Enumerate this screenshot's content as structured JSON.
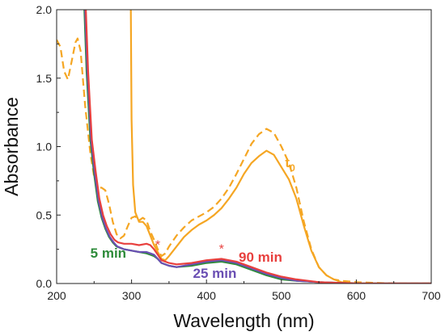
{
  "chart_data": {
    "type": "line",
    "xlabel": "Wavelength (nm)",
    "ylabel": "Absorbance",
    "xlim": [
      200,
      700
    ],
    "ylim": [
      0,
      2.0
    ],
    "xticks": [
      200,
      300,
      400,
      500,
      600,
      700
    ],
    "yticks": [
      0.0,
      0.5,
      1.0,
      1.5,
      2.0
    ],
    "ytick_labels": [
      "0.0",
      "0.5",
      "1.0",
      "1.5",
      "2.0"
    ],
    "grid": false,
    "series": [
      {
        "name": "t",
        "name_subscript": "0",
        "color": "#f5a623",
        "style": "dashed",
        "points": [
          [
            200,
            1.78
          ],
          [
            205,
            1.73
          ],
          [
            210,
            1.55
          ],
          [
            215,
            1.49
          ],
          [
            220,
            1.62
          ],
          [
            225,
            1.76
          ],
          [
            228,
            1.79
          ],
          [
            232,
            1.7
          ],
          [
            238,
            1.3
          ],
          [
            245,
            0.95
          ],
          [
            250,
            0.78
          ],
          [
            255,
            0.7
          ],
          [
            260,
            0.7
          ],
          [
            265,
            0.68
          ],
          [
            270,
            0.58
          ],
          [
            275,
            0.45
          ],
          [
            280,
            0.36
          ],
          [
            285,
            0.33
          ],
          [
            290,
            0.35
          ],
          [
            295,
            0.42
          ],
          [
            300,
            0.48
          ],
          [
            305,
            0.49
          ],
          [
            310,
            0.46
          ],
          [
            315,
            0.48
          ],
          [
            320,
            0.46
          ],
          [
            325,
            0.38
          ],
          [
            330,
            0.32
          ],
          [
            335,
            0.25
          ],
          [
            340,
            0.2
          ],
          [
            345,
            0.22
          ],
          [
            350,
            0.27
          ],
          [
            360,
            0.35
          ],
          [
            370,
            0.41
          ],
          [
            380,
            0.46
          ],
          [
            390,
            0.49
          ],
          [
            400,
            0.52
          ],
          [
            410,
            0.56
          ],
          [
            420,
            0.62
          ],
          [
            430,
            0.7
          ],
          [
            440,
            0.8
          ],
          [
            450,
            0.91
          ],
          [
            460,
            1.02
          ],
          [
            470,
            1.09
          ],
          [
            480,
            1.13
          ],
          [
            490,
            1.1
          ],
          [
            500,
            1.0
          ],
          [
            510,
            0.88
          ],
          [
            520,
            0.7
          ],
          [
            530,
            0.45
          ],
          [
            540,
            0.25
          ],
          [
            550,
            0.12
          ],
          [
            560,
            0.06
          ],
          [
            570,
            0.03
          ],
          [
            580,
            0.02
          ],
          [
            600,
            0.01
          ],
          [
            650,
            0.0
          ],
          [
            700,
            0.0
          ]
        ]
      },
      {
        "name": "t0 solid",
        "color": "#f5a623",
        "style": "solid",
        "points": [
          [
            299,
            2.0
          ],
          [
            300,
            1.2
          ],
          [
            302,
            0.72
          ],
          [
            305,
            0.52
          ],
          [
            310,
            0.45
          ],
          [
            315,
            0.45
          ],
          [
            320,
            0.42
          ],
          [
            325,
            0.35
          ],
          [
            330,
            0.28
          ],
          [
            340,
            0.18
          ],
          [
            345,
            0.17
          ],
          [
            350,
            0.2
          ],
          [
            360,
            0.27
          ],
          [
            370,
            0.34
          ],
          [
            380,
            0.39
          ],
          [
            390,
            0.43
          ],
          [
            400,
            0.46
          ],
          [
            410,
            0.5
          ],
          [
            420,
            0.55
          ],
          [
            430,
            0.62
          ],
          [
            440,
            0.7
          ],
          [
            450,
            0.8
          ],
          [
            460,
            0.88
          ],
          [
            470,
            0.93
          ],
          [
            480,
            0.97
          ],
          [
            490,
            0.94
          ],
          [
            500,
            0.85
          ],
          [
            510,
            0.76
          ],
          [
            520,
            0.62
          ],
          [
            530,
            0.42
          ],
          [
            540,
            0.24
          ],
          [
            550,
            0.12
          ],
          [
            560,
            0.06
          ],
          [
            570,
            0.03
          ],
          [
            580,
            0.01
          ],
          [
            600,
            0.0
          ],
          [
            650,
            0.0
          ],
          [
            700,
            0.0
          ]
        ]
      },
      {
        "name": "5 min",
        "color": "#2e8b3a",
        "style": "solid",
        "points": [
          [
            237,
            2.0
          ],
          [
            240,
            1.55
          ],
          [
            245,
            1.05
          ],
          [
            250,
            0.8
          ],
          [
            255,
            0.6
          ],
          [
            260,
            0.48
          ],
          [
            265,
            0.4
          ],
          [
            270,
            0.34
          ],
          [
            275,
            0.3
          ],
          [
            280,
            0.27
          ],
          [
            290,
            0.25
          ],
          [
            300,
            0.24
          ],
          [
            310,
            0.23
          ],
          [
            320,
            0.22
          ],
          [
            325,
            0.21
          ],
          [
            330,
            0.2
          ],
          [
            335,
            0.18
          ],
          [
            340,
            0.15
          ],
          [
            350,
            0.13
          ],
          [
            360,
            0.12
          ],
          [
            380,
            0.13
          ],
          [
            400,
            0.15
          ],
          [
            420,
            0.16
          ],
          [
            440,
            0.14
          ],
          [
            460,
            0.1
          ],
          [
            480,
            0.06
          ],
          [
            500,
            0.03
          ],
          [
            520,
            0.02
          ],
          [
            550,
            0.01
          ],
          [
            600,
            0.0
          ],
          [
            700,
            0.0
          ]
        ]
      },
      {
        "name": "25 min",
        "color": "#6a4fb3",
        "style": "solid",
        "points": [
          [
            238,
            2.0
          ],
          [
            241,
            1.55
          ],
          [
            246,
            1.05
          ],
          [
            251,
            0.8
          ],
          [
            256,
            0.6
          ],
          [
            261,
            0.48
          ],
          [
            266,
            0.4
          ],
          [
            271,
            0.34
          ],
          [
            276,
            0.3
          ],
          [
            281,
            0.27
          ],
          [
            290,
            0.25
          ],
          [
            300,
            0.24
          ],
          [
            310,
            0.23
          ],
          [
            320,
            0.23
          ],
          [
            325,
            0.22
          ],
          [
            330,
            0.21
          ],
          [
            335,
            0.18
          ],
          [
            340,
            0.15
          ],
          [
            350,
            0.13
          ],
          [
            360,
            0.12
          ],
          [
            380,
            0.14
          ],
          [
            400,
            0.16
          ],
          [
            420,
            0.17
          ],
          [
            440,
            0.15
          ],
          [
            460,
            0.11
          ],
          [
            480,
            0.07
          ],
          [
            500,
            0.04
          ],
          [
            520,
            0.02
          ],
          [
            550,
            0.01
          ],
          [
            600,
            0.0
          ],
          [
            700,
            0.0
          ]
        ]
      },
      {
        "name": "90 min",
        "color": "#e8403e",
        "style": "solid",
        "points": [
          [
            239,
            2.0
          ],
          [
            242,
            1.55
          ],
          [
            247,
            1.05
          ],
          [
            252,
            0.82
          ],
          [
            257,
            0.62
          ],
          [
            262,
            0.5
          ],
          [
            267,
            0.42
          ],
          [
            272,
            0.36
          ],
          [
            277,
            0.32
          ],
          [
            282,
            0.3
          ],
          [
            290,
            0.29
          ],
          [
            300,
            0.29
          ],
          [
            310,
            0.28
          ],
          [
            320,
            0.29
          ],
          [
            325,
            0.28
          ],
          [
            330,
            0.25
          ],
          [
            335,
            0.21
          ],
          [
            340,
            0.17
          ],
          [
            350,
            0.15
          ],
          [
            360,
            0.14
          ],
          [
            380,
            0.15
          ],
          [
            400,
            0.17
          ],
          [
            420,
            0.18
          ],
          [
            440,
            0.16
          ],
          [
            460,
            0.12
          ],
          [
            480,
            0.08
          ],
          [
            500,
            0.05
          ],
          [
            520,
            0.03
          ],
          [
            550,
            0.01
          ],
          [
            600,
            0.0
          ],
          [
            700,
            0.0
          ]
        ]
      }
    ],
    "annotations": [
      {
        "text": "5 min",
        "color": "#2e8b3a",
        "x": 245,
        "y": 0.19
      },
      {
        "text": "25 min",
        "color": "#6a4fb3",
        "x": 382,
        "y": 0.04
      },
      {
        "text": "90 min",
        "color": "#e8403e",
        "x": 443,
        "y": 0.16
      },
      {
        "text": "*",
        "color": "#e8403e",
        "x": 335,
        "y": 0.25
      },
      {
        "text": "*",
        "color": "#e8403e",
        "x": 420,
        "y": 0.22
      }
    ],
    "t0_label": {
      "text": "t",
      "subscript": "0",
      "color": "#f5a623",
      "x": 505,
      "y": 0.85
    }
  }
}
